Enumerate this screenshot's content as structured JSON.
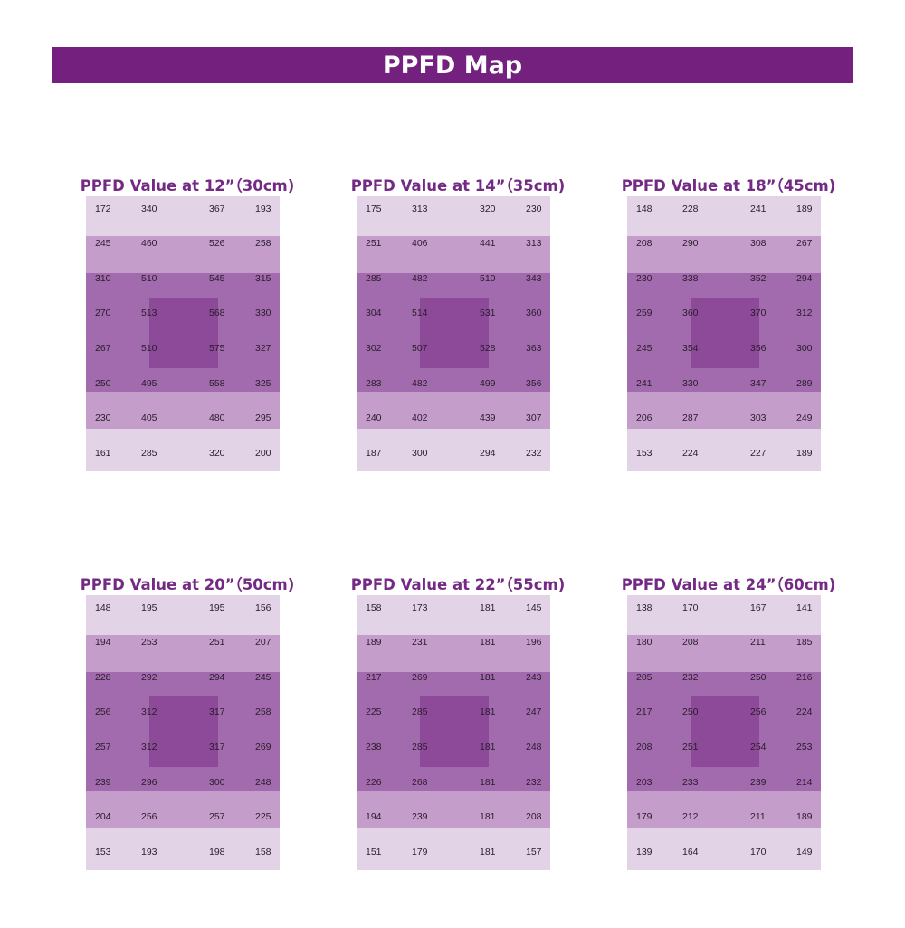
{
  "header": {
    "title": "PPFD Map"
  },
  "colors": {
    "banner": "#74207f",
    "title_text": "#742a84",
    "band_light": "#e3d3e7",
    "band_mid": "#c49dcb",
    "band_dark": "#a26bad",
    "center_square": "#8c4a99"
  },
  "chart_data": [
    {
      "type": "heatmap",
      "title": "PPFD Value at 12”（30cm)",
      "rows": [
        [
          172,
          340,
          367,
          193
        ],
        [
          245,
          460,
          526,
          258
        ],
        [
          310,
          510,
          545,
          315
        ],
        [
          270,
          513,
          568,
          330
        ],
        [
          267,
          510,
          575,
          327
        ],
        [
          250,
          495,
          558,
          325
        ],
        [
          230,
          405,
          480,
          295
        ],
        [
          161,
          285,
          320,
          200
        ]
      ]
    },
    {
      "type": "heatmap",
      "title": "PPFD Value at 14”（35cm)",
      "rows": [
        [
          175,
          313,
          320,
          230
        ],
        [
          251,
          406,
          441,
          313
        ],
        [
          285,
          482,
          510,
          343
        ],
        [
          304,
          514,
          531,
          360
        ],
        [
          302,
          507,
          528,
          363
        ],
        [
          283,
          482,
          499,
          356
        ],
        [
          240,
          402,
          439,
          307
        ],
        [
          187,
          300,
          294,
          232
        ]
      ]
    },
    {
      "type": "heatmap",
      "title": "PPFD Value at 18”（45cm)",
      "rows": [
        [
          148,
          228,
          241,
          189
        ],
        [
          208,
          290,
          308,
          267
        ],
        [
          230,
          338,
          352,
          294
        ],
        [
          259,
          360,
          370,
          312
        ],
        [
          245,
          354,
          356,
          300
        ],
        [
          241,
          330,
          347,
          289
        ],
        [
          206,
          287,
          303,
          249
        ],
        [
          153,
          224,
          227,
          189
        ]
      ]
    },
    {
      "type": "heatmap",
      "title": "PPFD Value at 20”（50cm)",
      "rows": [
        [
          148,
          195,
          195,
          156
        ],
        [
          194,
          253,
          251,
          207
        ],
        [
          228,
          292,
          294,
          245
        ],
        [
          256,
          312,
          317,
          258
        ],
        [
          257,
          312,
          317,
          269
        ],
        [
          239,
          296,
          300,
          248
        ],
        [
          204,
          256,
          257,
          225
        ],
        [
          153,
          193,
          198,
          158
        ]
      ]
    },
    {
      "type": "heatmap",
      "title": "PPFD Value at 22”（55cm)",
      "rows": [
        [
          158,
          173,
          181,
          145
        ],
        [
          189,
          231,
          181,
          196
        ],
        [
          217,
          269,
          181,
          243
        ],
        [
          225,
          285,
          181,
          247
        ],
        [
          238,
          285,
          181,
          248
        ],
        [
          226,
          268,
          181,
          232
        ],
        [
          194,
          239,
          181,
          208
        ],
        [
          151,
          179,
          181,
          157
        ]
      ]
    },
    {
      "type": "heatmap",
      "title": "PPFD Value at 24”（60cm)",
      "rows": [
        [
          138,
          170,
          167,
          141
        ],
        [
          180,
          208,
          211,
          185
        ],
        [
          205,
          232,
          250,
          216
        ],
        [
          217,
          250,
          256,
          224
        ],
        [
          208,
          251,
          254,
          253
        ],
        [
          203,
          233,
          239,
          214
        ],
        [
          179,
          212,
          211,
          189
        ],
        [
          139,
          164,
          170,
          149
        ]
      ]
    }
  ]
}
